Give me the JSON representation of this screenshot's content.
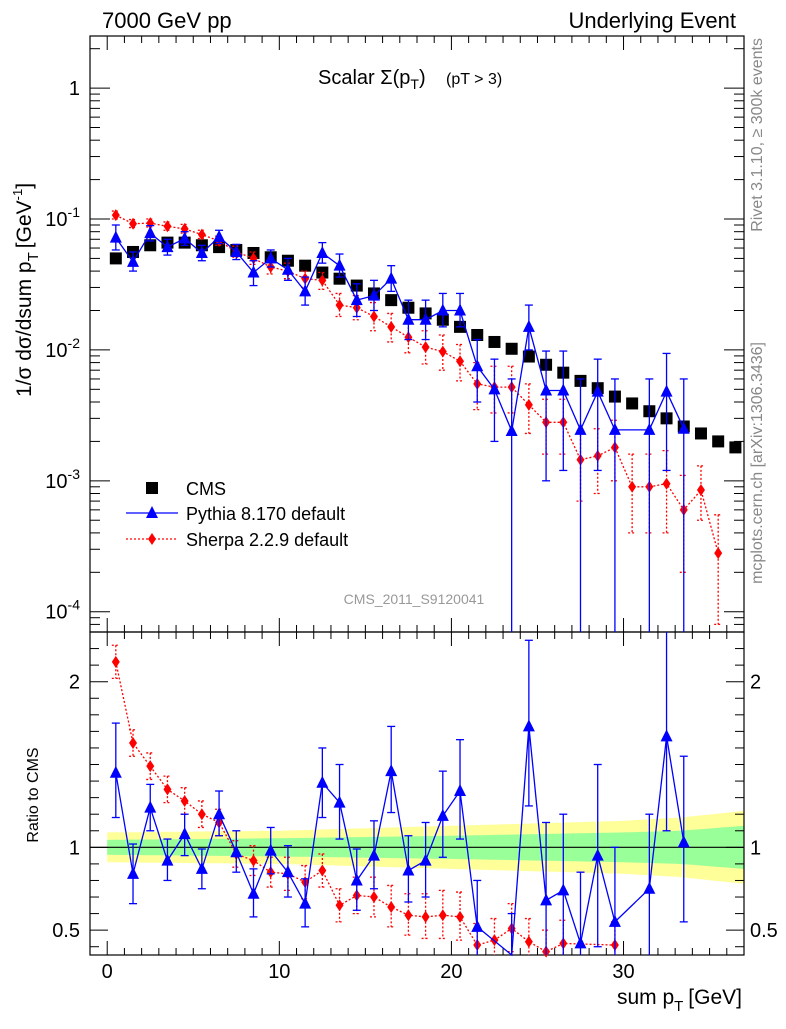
{
  "header": {
    "left": "7000 GeV pp",
    "right": "Underlying Event"
  },
  "side_labels": {
    "rivet": "Rivet 3.1.10, ≥ 300k events",
    "mcplots": "mcplots.cern.ch [arXiv:1306.3436]"
  },
  "plot_title": {
    "main": "Scalar Σ(p",
    "sub_T": "T",
    "close": ")",
    "cut": "(pT >  3)"
  },
  "analysis_id": "CMS_2011_S9120041",
  "axes": {
    "x_label": "sum p",
    "x_label_sub": "T",
    "x_label_unit": "[GeV]",
    "y_label": "1/σ dσ/dsum p",
    "y_label_sub": "T",
    "y_label_unit": "[GeV",
    "y_label_unit_sup": "-1",
    "y_label_unit_close": "]",
    "ratio_label": "Ratio to CMS"
  },
  "legend": [
    {
      "label": "CMS",
      "color": "#000000",
      "marker": "square"
    },
    {
      "label": "Pythia 8.170 default",
      "color": "#0000ff",
      "marker": "triangle"
    },
    {
      "label": "Sherpa 2.2.9 default",
      "color": "#ff0000",
      "marker": "diamond"
    }
  ],
  "chart_data": {
    "type": "scatter",
    "x_range": [
      -1,
      37
    ],
    "main_ylim": [
      7e-05,
      2.5
    ],
    "main_log": true,
    "x_ticks": [
      0,
      10,
      20,
      30
    ],
    "main_y_ticks": [
      {
        "v": 0.0001,
        "mant": "10",
        "exp": "-4"
      },
      {
        "v": 0.001,
        "mant": "10",
        "exp": "-3"
      },
      {
        "v": 0.01,
        "mant": "10",
        "exp": "-2"
      },
      {
        "v": 0.1,
        "mant": "10",
        "exp": "-1"
      },
      {
        "v": 1,
        "mant": "1",
        "exp": ""
      }
    ],
    "ratio_ylim": [
      0.35,
      2.3
    ],
    "ratio_y_ticks": [
      0.5,
      1,
      2
    ],
    "series": [
      {
        "name": "CMS",
        "color": "#000000",
        "points": [
          [
            0.5,
            0.05
          ],
          [
            1.5,
            0.056
          ],
          [
            2.5,
            0.063
          ],
          [
            3.5,
            0.066
          ],
          [
            4.5,
            0.066
          ],
          [
            5.5,
            0.063
          ],
          [
            6.5,
            0.061
          ],
          [
            7.5,
            0.058
          ],
          [
            8.5,
            0.055
          ],
          [
            9.5,
            0.051
          ],
          [
            10.5,
            0.048
          ],
          [
            11.5,
            0.044
          ],
          [
            12.5,
            0.039
          ],
          [
            13.5,
            0.035
          ],
          [
            14.5,
            0.031
          ],
          [
            15.5,
            0.027
          ],
          [
            16.5,
            0.024
          ],
          [
            17.5,
            0.021
          ],
          [
            18.5,
            0.019
          ],
          [
            19.5,
            0.017
          ],
          [
            20.5,
            0.015
          ],
          [
            21.5,
            0.013
          ],
          [
            22.5,
            0.0115
          ],
          [
            23.5,
            0.0102
          ],
          [
            24.5,
            0.0089
          ],
          [
            25.5,
            0.0077
          ],
          [
            26.5,
            0.0067
          ],
          [
            27.5,
            0.0058
          ],
          [
            28.5,
            0.0051
          ],
          [
            29.5,
            0.0044
          ],
          [
            30.5,
            0.0039
          ],
          [
            31.5,
            0.0034
          ],
          [
            32.5,
            0.003
          ],
          [
            33.5,
            0.0026
          ],
          [
            34.5,
            0.0023
          ],
          [
            35.5,
            0.002
          ],
          [
            36.5,
            0.0018
          ]
        ]
      },
      {
        "name": "Pythia 8.170 default",
        "color": "#0000ff",
        "points": [
          [
            0.5,
            0.072,
            0.058,
            0.09
          ],
          [
            1.5,
            0.047,
            0.04,
            0.056
          ],
          [
            2.5,
            0.078,
            0.068,
            0.089
          ],
          [
            3.5,
            0.061,
            0.053,
            0.07
          ],
          [
            4.5,
            0.071,
            0.063,
            0.08
          ],
          [
            5.5,
            0.055,
            0.048,
            0.063
          ],
          [
            6.5,
            0.073,
            0.065,
            0.082
          ],
          [
            7.5,
            0.056,
            0.049,
            0.064
          ],
          [
            8.5,
            0.039,
            0.031,
            0.048
          ],
          [
            9.5,
            0.05,
            0.043,
            0.058
          ],
          [
            10.5,
            0.041,
            0.034,
            0.05
          ],
          [
            11.5,
            0.028,
            0.022,
            0.036
          ],
          [
            12.5,
            0.055,
            0.046,
            0.066
          ],
          [
            13.5,
            0.044,
            0.036,
            0.054
          ],
          [
            14.5,
            0.024,
            0.018,
            0.032
          ],
          [
            15.5,
            0.026,
            0.02,
            0.034
          ],
          [
            16.5,
            0.035,
            0.028,
            0.044
          ],
          [
            17.5,
            0.017,
            0.012,
            0.024
          ],
          [
            18.5,
            0.017,
            0.012,
            0.024
          ],
          [
            19.5,
            0.02,
            0.015,
            0.027
          ],
          [
            20.5,
            0.02,
            0.015,
            0.027
          ],
          [
            21.5,
            0.0075,
            0.004,
            0.012
          ],
          [
            22.5,
            0.005,
            0.002,
            0.0085
          ],
          [
            23.5,
            0.0024,
            5e-05,
            0.006
          ],
          [
            24.5,
            0.015,
            0.01,
            0.022
          ],
          [
            25.5,
            0.0049,
            0.001,
            0.0098
          ],
          [
            26.5,
            0.0049,
            0.0012,
            0.0098
          ],
          [
            27.5,
            0.00245,
            5e-05,
            0.006
          ],
          [
            28.5,
            0.0048,
            0.0012,
            0.0085
          ],
          [
            29.5,
            0.00245,
            5e-05,
            0.006
          ],
          [
            31.5,
            0.00245,
            5e-05,
            0.006
          ],
          [
            32.5,
            0.0048,
            0.0012,
            0.0094
          ],
          [
            33.5,
            0.0025,
            5e-05,
            0.006
          ]
        ]
      },
      {
        "name": "Sherpa 2.2.9 default",
        "color": "#ff0000",
        "points": [
          [
            0.5,
            0.107,
            0.1,
            0.115
          ],
          [
            1.5,
            0.092,
            0.086,
            0.099
          ],
          [
            2.5,
            0.093,
            0.087,
            0.1
          ],
          [
            3.5,
            0.088,
            0.082,
            0.095
          ],
          [
            4.5,
            0.084,
            0.078,
            0.091
          ],
          [
            5.5,
            0.076,
            0.071,
            0.082
          ],
          [
            6.5,
            0.068,
            0.063,
            0.074
          ],
          [
            7.5,
            0.056,
            0.051,
            0.062
          ],
          [
            8.5,
            0.05,
            0.045,
            0.056
          ],
          [
            9.5,
            0.043,
            0.038,
            0.049
          ],
          [
            10.5,
            0.04,
            0.035,
            0.046
          ],
          [
            11.5,
            0.035,
            0.03,
            0.04
          ],
          [
            12.5,
            0.034,
            0.029,
            0.039
          ],
          [
            13.5,
            0.022,
            0.018,
            0.027
          ],
          [
            14.5,
            0.021,
            0.017,
            0.026
          ],
          [
            15.5,
            0.018,
            0.014,
            0.023
          ],
          [
            16.5,
            0.015,
            0.0115,
            0.019
          ],
          [
            17.5,
            0.0125,
            0.0095,
            0.016
          ],
          [
            18.5,
            0.0105,
            0.0078,
            0.014
          ],
          [
            19.5,
            0.0097,
            0.007,
            0.013
          ],
          [
            20.5,
            0.0082,
            0.0058,
            0.011
          ],
          [
            21.5,
            0.0055,
            0.0035,
            0.008
          ],
          [
            22.5,
            0.0052,
            0.0033,
            0.0075
          ],
          [
            23.5,
            0.0052,
            0.0033,
            0.0075
          ],
          [
            24.5,
            0.0038,
            0.0023,
            0.0055
          ],
          [
            25.5,
            0.0028,
            0.0016,
            0.0042
          ],
          [
            26.5,
            0.0028,
            0.0016,
            0.0042
          ],
          [
            27.5,
            0.00145,
            0.0007,
            0.0024
          ],
          [
            28.5,
            0.00155,
            0.0008,
            0.0025
          ],
          [
            29.5,
            0.0018,
            0.001,
            0.0029
          ],
          [
            30.5,
            0.0009,
            0.0004,
            0.0016
          ],
          [
            31.5,
            0.0009,
            0.0004,
            0.0016
          ],
          [
            32.5,
            0.00095,
            0.0004,
            0.0017
          ],
          [
            33.5,
            0.0006,
            0.0002,
            0.0011
          ],
          [
            34.5,
            0.00085,
            0.0005,
            0.0013
          ],
          [
            35.5,
            0.00028,
            8e-05,
            0.00055
          ]
        ]
      }
    ],
    "ratio_series": [
      {
        "name": "Pythia 8.170 default",
        "color": "#0000ff",
        "points": [
          [
            0.5,
            1.45,
            1.18,
            1.75
          ],
          [
            1.5,
            0.84,
            0.66,
            1.02
          ],
          [
            2.5,
            1.24,
            1.1,
            1.38
          ],
          [
            3.5,
            0.92,
            0.8,
            1.05
          ],
          [
            4.5,
            1.08,
            0.95,
            1.2
          ],
          [
            5.5,
            0.87,
            0.75,
            0.99
          ],
          [
            6.5,
            1.2,
            1.07,
            1.34
          ],
          [
            7.5,
            0.97,
            0.85,
            1.1
          ],
          [
            8.5,
            0.72,
            0.58,
            0.87
          ],
          [
            9.5,
            0.98,
            0.84,
            1.12
          ],
          [
            10.5,
            0.85,
            0.7,
            1.01
          ],
          [
            11.5,
            0.66,
            0.52,
            0.81
          ],
          [
            12.5,
            1.39,
            1.18,
            1.6
          ],
          [
            13.5,
            1.27,
            1.05,
            1.5
          ],
          [
            14.5,
            0.8,
            0.62,
            0.99
          ],
          [
            15.5,
            0.95,
            0.75,
            1.16
          ],
          [
            16.5,
            1.46,
            1.21,
            1.73
          ],
          [
            17.5,
            0.86,
            0.67,
            1.07
          ],
          [
            18.5,
            0.92,
            0.7,
            1.15
          ],
          [
            19.5,
            1.19,
            0.94,
            1.46
          ],
          [
            20.5,
            1.34,
            1.05,
            1.65
          ],
          [
            21.5,
            0.52,
            0.28,
            0.8
          ],
          [
            23.5,
            0.23,
            0.0,
            0.6
          ],
          [
            24.5,
            1.73,
            1.25,
            2.25
          ],
          [
            25.5,
            0.68,
            0.25,
            1.15
          ],
          [
            26.5,
            0.74,
            0.3,
            1.2
          ],
          [
            27.5,
            0.42,
            0.0,
            0.85
          ],
          [
            28.5,
            0.95,
            0.4,
            1.5
          ],
          [
            29.5,
            0.55,
            0.1,
            1.0
          ],
          [
            31.5,
            0.75,
            0.3,
            1.2
          ],
          [
            32.5,
            1.67,
            1.1,
            2.3
          ],
          [
            33.5,
            1.03,
            0.55,
            1.55
          ]
        ]
      },
      {
        "name": "Sherpa 2.2.9 default",
        "color": "#ff0000",
        "points": [
          [
            0.5,
            2.12,
            2.02,
            2.22
          ],
          [
            1.5,
            1.63,
            1.55,
            1.71
          ],
          [
            2.5,
            1.49,
            1.41,
            1.57
          ],
          [
            3.5,
            1.35,
            1.27,
            1.43
          ],
          [
            4.5,
            1.28,
            1.2,
            1.36
          ],
          [
            5.5,
            1.2,
            1.12,
            1.28
          ],
          [
            6.5,
            1.15,
            1.07,
            1.23
          ],
          [
            7.5,
            0.96,
            0.88,
            1.04
          ],
          [
            8.5,
            0.92,
            0.83,
            1.01
          ],
          [
            9.5,
            0.85,
            0.76,
            0.94
          ],
          [
            10.5,
            0.84,
            0.74,
            0.94
          ],
          [
            11.5,
            0.79,
            0.69,
            0.89
          ],
          [
            12.5,
            0.86,
            0.76,
            0.96
          ],
          [
            13.5,
            0.65,
            0.55,
            0.75
          ],
          [
            14.5,
            0.71,
            0.6,
            0.82
          ],
          [
            15.5,
            0.7,
            0.58,
            0.82
          ],
          [
            16.5,
            0.64,
            0.52,
            0.77
          ],
          [
            17.5,
            0.59,
            0.47,
            0.72
          ],
          [
            18.5,
            0.58,
            0.45,
            0.72
          ],
          [
            19.5,
            0.59,
            0.45,
            0.74
          ],
          [
            20.5,
            0.58,
            0.44,
            0.73
          ],
          [
            21.5,
            0.41,
            0.3,
            0.54
          ],
          [
            22.5,
            0.44,
            0.32,
            0.57
          ],
          [
            23.5,
            0.51,
            0.37,
            0.66
          ],
          [
            24.5,
            0.43,
            0.3,
            0.57
          ],
          [
            25.5,
            0.37,
            0.25,
            0.5
          ],
          [
            26.5,
            0.42,
            0.29,
            0.56
          ],
          [
            29.5,
            0.41,
            0.28,
            0.55
          ]
        ]
      }
    ],
    "bands": {
      "yellow_halfwidth": [
        [
          0,
          0.09
        ],
        [
          10,
          0.1
        ],
        [
          20,
          0.13
        ],
        [
          30,
          0.16
        ],
        [
          33.3,
          0.18
        ],
        [
          37,
          0.22
        ]
      ],
      "green_halfwidth": [
        [
          0,
          0.045
        ],
        [
          10,
          0.055
        ],
        [
          20,
          0.07
        ],
        [
          30,
          0.09
        ],
        [
          33.3,
          0.1
        ],
        [
          37,
          0.13
        ]
      ],
      "yellow": "#ffff99",
      "green": "#99ff99"
    }
  }
}
